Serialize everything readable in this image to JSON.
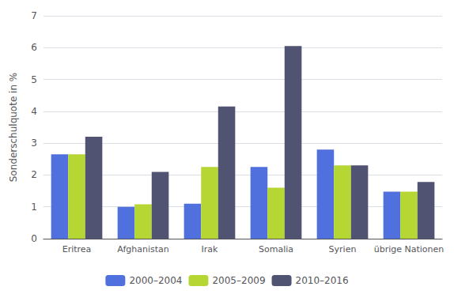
{
  "chart_data": {
    "type": "bar",
    "ylabel": "Sonderschulquote in %",
    "categories": [
      "Eritrea",
      "Afghanistan",
      "Irak",
      "Somalia",
      "Syrien",
      "übrige Nationen"
    ],
    "series": [
      {
        "name": "2000–2004",
        "values": [
          2.65,
          1.0,
          1.1,
          2.25,
          2.8,
          1.48
        ]
      },
      {
        "name": "2005–2009",
        "values": [
          2.65,
          1.08,
          2.25,
          1.6,
          2.3,
          1.48
        ]
      },
      {
        "name": "2010–2016",
        "values": [
          3.2,
          2.1,
          4.15,
          6.05,
          2.3,
          1.78
        ]
      }
    ],
    "ylim": [
      0,
      7
    ],
    "yticks": [
      0,
      1,
      2,
      3,
      4,
      5,
      6,
      7
    ],
    "grid": true,
    "legend": "bottom"
  }
}
